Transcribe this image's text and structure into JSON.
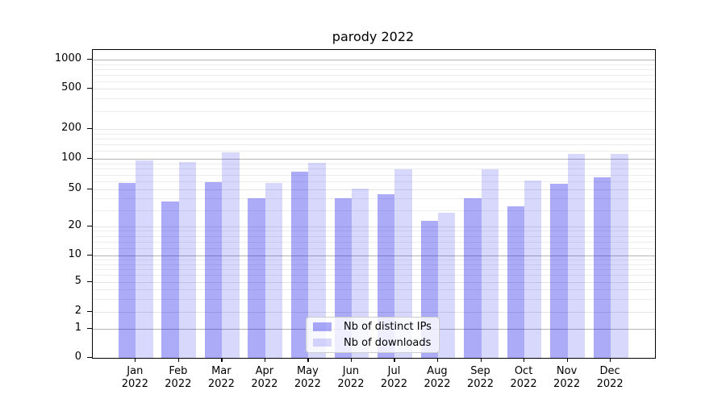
{
  "chart_data": {
    "type": "bar",
    "title": "parody 2022",
    "categories": [
      "Jan",
      "Feb",
      "Mar",
      "Apr",
      "May",
      "Jun",
      "Jul",
      "Aug",
      "Sep",
      "Oct",
      "Nov",
      "Dec"
    ],
    "year": "2022",
    "series": [
      {
        "name": "Nb of distinct IPs",
        "color": "rgba(15,15,235,0.35)",
        "values": [
          58,
          37,
          59,
          40,
          75,
          40,
          44,
          23,
          40,
          33,
          57,
          66
        ]
      },
      {
        "name": "Nb of downloads",
        "color": "rgba(15,15,235,0.16)",
        "values": [
          97,
          93,
          116,
          58,
          92,
          51,
          79,
          28,
          79,
          61,
          111,
          111
        ]
      }
    ],
    "xlabel": "",
    "ylabel": "",
    "y_axis": {
      "scale": "symlog",
      "ticks": [
        0,
        1,
        2,
        5,
        10,
        20,
        50,
        100,
        200,
        500,
        1000
      ],
      "ylim": [
        0,
        1000
      ]
    },
    "legend": {
      "position": "lower center",
      "entries": [
        "Nb of distinct IPs",
        "Nb of downloads"
      ]
    },
    "grid": true,
    "colors": {
      "major_grid": "#b2b2b2",
      "mid_grid": "#e4e4e4",
      "minor_grid": "#ededed",
      "axis": "#000000",
      "background": "#ffffff",
      "text": "#000000"
    }
  }
}
